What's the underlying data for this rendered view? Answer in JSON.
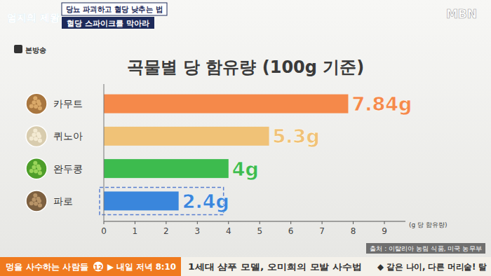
{
  "chart_data": {
    "type": "bar",
    "orientation": "horizontal",
    "title": "곡물별 당 함유량 (100g 기준)",
    "xlabel": "(g 당 함유량)",
    "categories": [
      "카무트",
      "퀴노아",
      "완두콩",
      "파로"
    ],
    "values": [
      7.84,
      5.3,
      4,
      2.4
    ],
    "value_labels": [
      "7.84g",
      "5.3g",
      "4g",
      "2.4g"
    ],
    "colors": [
      "#f5894a",
      "#f0c277",
      "#3dbb4e",
      "#3a86dc"
    ],
    "xlim": [
      0,
      9
    ],
    "xticks": [
      0,
      1,
      2,
      3,
      4,
      5,
      6,
      7,
      8,
      9
    ],
    "grid": false,
    "data_labels": true,
    "annotations": [
      "출처 : 이탈리아 농림 식품, 미국 농무부"
    ]
  },
  "overlay": {
    "show_title": "엄지의 제왕",
    "live": "본방송",
    "headline": "당뇨 파괴하고 혈당 낮추는 법",
    "subheadline": "혈당 스파이크를 막아라",
    "channel": "MBN",
    "ticker": [
      "멍을 사수하는 사람들",
      "12",
      "▶ 내일 저녁 8:10",
      "1세대 샴푸 모델, 오미희의 모발 사수법",
      "◆ 같은 나이, 다른 머리숱! 탈"
    ]
  }
}
